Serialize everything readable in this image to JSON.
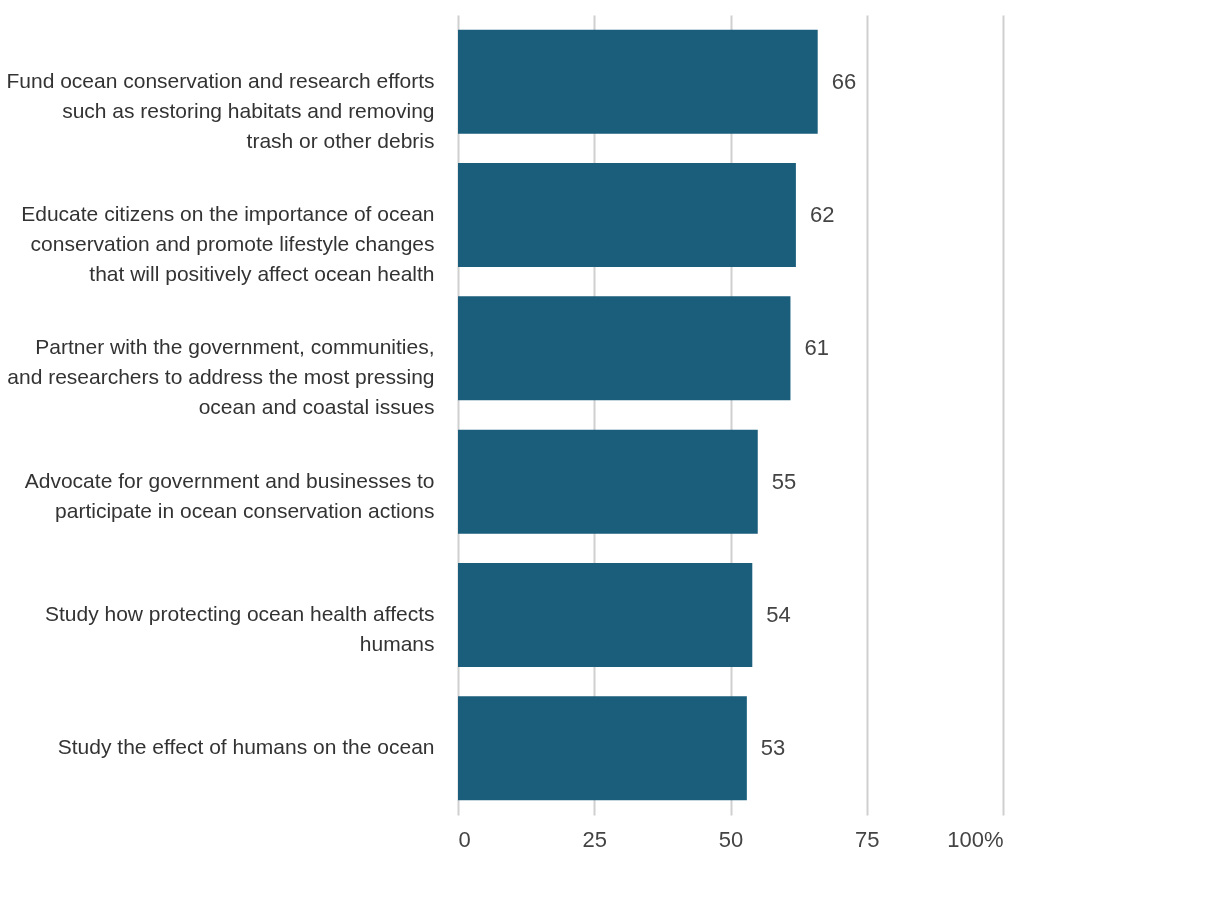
{
  "chart_data": {
    "type": "bar",
    "orientation": "horizontal",
    "categories": [
      "Fund ocean conservation and research efforts such as restoring habitats and removing trash or other debris",
      "Educate citizens on the importance of ocean conservation and promote lifestyle changes that will positively affect ocean health",
      "Partner with the government, communities, and researchers to address the most pressing ocean and coastal issues",
      "Advocate for government and businesses to participate in ocean conservation actions",
      "Study how protecting ocean health affects humans",
      "Study the effect of humans on the ocean"
    ],
    "values": [
      66,
      62,
      61,
      55,
      54,
      53
    ],
    "color": "#1a5e7c",
    "xlim": [
      0,
      100
    ],
    "xticks": [
      0,
      25,
      50,
      75,
      {
        "value": 100,
        "label": "100%"
      }
    ],
    "grid": "x",
    "data_labels": true
  }
}
